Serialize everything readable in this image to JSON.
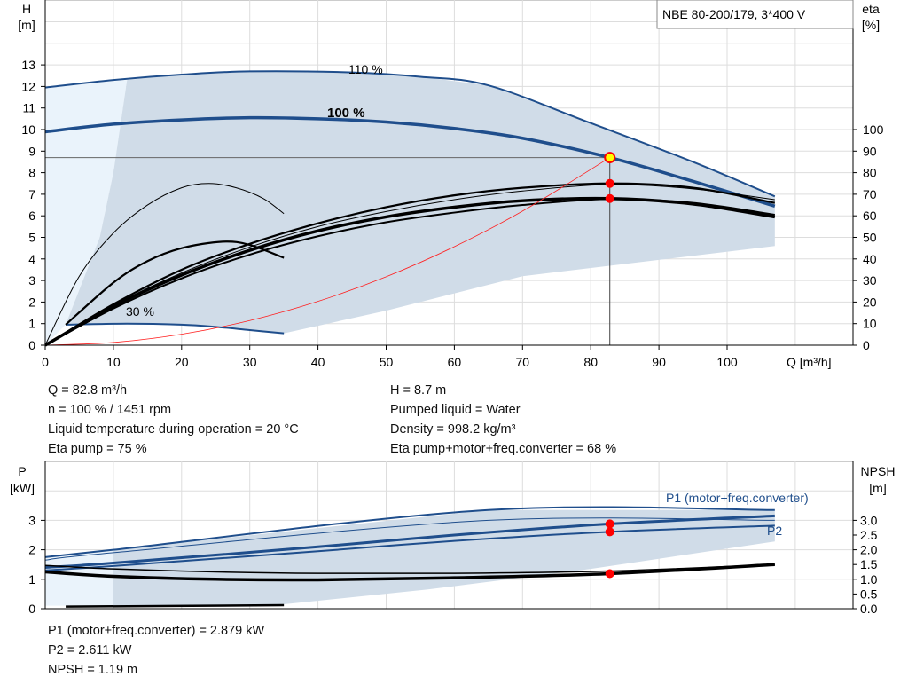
{
  "chart_data": [
    {
      "type": "line",
      "title": "NBE 80-200/179, 3*400 V",
      "xlabel": "Q [m³/h]",
      "ylabel": "H\n[m]",
      "y2label": "eta\n[%]",
      "xlim": [
        0,
        117
      ],
      "ylim": [
        0,
        16
      ],
      "y2lim": [
        0,
        160
      ],
      "xticks": [
        0,
        10,
        20,
        30,
        40,
        50,
        60,
        70,
        80,
        90,
        100
      ],
      "yticks": [
        0,
        1,
        2,
        3,
        4,
        5,
        6,
        7,
        8,
        9,
        10,
        11,
        12,
        13
      ],
      "y2ticks": [
        0,
        10,
        20,
        30,
        40,
        50,
        60,
        70,
        80,
        90,
        100
      ],
      "grid": true,
      "series": [
        {
          "name": "110 %",
          "axis": "H",
          "color": "#1f4e8c",
          "width": 2,
          "x": [
            0,
            10,
            20,
            30,
            45,
            55,
            65,
            80,
            95,
            107
          ],
          "y": [
            11.95,
            12.3,
            12.55,
            12.7,
            12.65,
            12.45,
            12.05,
            10.3,
            8.5,
            6.9
          ]
        },
        {
          "name": "100 %",
          "axis": "H",
          "color": "#1f4e8c",
          "width": 3.5,
          "x": [
            0,
            10,
            20,
            30,
            40,
            50,
            60,
            70,
            82.8,
            95,
            107
          ],
          "y": [
            9.9,
            10.25,
            10.45,
            10.55,
            10.5,
            10.35,
            10.05,
            9.6,
            8.7,
            7.6,
            6.45
          ]
        },
        {
          "name": "30 %",
          "axis": "H",
          "color": "#1f4e8c",
          "width": 2,
          "x": [
            3,
            12,
            20,
            25,
            30,
            35
          ],
          "y": [
            0.95,
            1.0,
            0.95,
            0.85,
            0.7,
            0.55
          ]
        },
        {
          "axis": "H",
          "color": "#000",
          "width": 1,
          "x": [
            0,
            5,
            10,
            15,
            20,
            24,
            28,
            32,
            35
          ],
          "y": [
            0,
            3.2,
            5.2,
            6.5,
            7.3,
            7.5,
            7.3,
            6.8,
            6.1
          ]
        },
        {
          "axis": "H",
          "color": "#000",
          "width": 2.2,
          "x": [
            3,
            10,
            15,
            20,
            26,
            30,
            35
          ],
          "y": [
            0.95,
            2.9,
            3.9,
            4.5,
            4.8,
            4.65,
            4.05
          ]
        },
        {
          "axis": "H",
          "color": "#000",
          "width": 2.2,
          "x": [
            0,
            10,
            20,
            30,
            40,
            50,
            60,
            70,
            82.8,
            95,
            107
          ],
          "y": [
            0,
            1.9,
            3.5,
            4.7,
            5.65,
            6.4,
            6.95,
            7.3,
            7.5,
            7.3,
            6.6
          ]
        },
        {
          "axis": "H",
          "color": "#000",
          "width": 1,
          "x": [
            0,
            10,
            20,
            30,
            40,
            50,
            60,
            70,
            82.8,
            95,
            107
          ],
          "y": [
            0,
            1.85,
            3.35,
            4.55,
            5.5,
            6.2,
            6.75,
            7.15,
            7.45,
            7.25,
            6.75
          ]
        },
        {
          "axis": "H",
          "color": "#000",
          "width": 3.5,
          "x": [
            0,
            10,
            20,
            30,
            40,
            50,
            60,
            70,
            82.8,
            95,
            107
          ],
          "y": [
            0,
            1.8,
            3.25,
            4.4,
            5.3,
            5.95,
            6.4,
            6.7,
            6.8,
            6.55,
            5.95
          ]
        },
        {
          "axis": "H",
          "color": "#000",
          "width": 2,
          "x": [
            0,
            10,
            20,
            30,
            40,
            50,
            60,
            70,
            82.8,
            95,
            107
          ],
          "y": [
            0,
            1.7,
            3.1,
            4.2,
            5.05,
            5.7,
            6.15,
            6.5,
            6.78,
            6.6,
            6.05
          ]
        },
        {
          "axis": "H",
          "color": "#ff2020",
          "width": 0.8,
          "x": [
            0,
            10,
            20,
            30,
            40,
            50,
            60,
            70,
            82.8
          ],
          "y": [
            0,
            0.127,
            0.508,
            1.142,
            2.03,
            3.172,
            4.568,
            6.218,
            8.7
          ]
        }
      ],
      "shaded_dark": {
        "x": [
          12,
          20,
          30,
          45,
          55,
          65,
          80,
          95,
          107,
          107,
          70,
          50,
          35,
          25,
          12,
          3,
          8,
          10
        ],
        "y": [
          12.3,
          12.55,
          12.7,
          12.65,
          12.45,
          12.05,
          10.3,
          8.5,
          6.9,
          4.6,
          3.2,
          1.6,
          0.55,
          0.85,
          1.0,
          0.95,
          5.0,
          8.0
        ]
      },
      "shaded_light": {
        "x": [
          0,
          12,
          10,
          8,
          3,
          0
        ],
        "y": [
          11.95,
          12.3,
          8.0,
          5.0,
          0.95,
          0
        ]
      },
      "operating_point": {
        "Q": 82.8,
        "H": 8.7
      },
      "markers": [
        {
          "Q": 82.8,
          "eta": 75
        },
        {
          "Q": 82.8,
          "eta": 68
        }
      ],
      "annotations": [
        "110 %",
        "100 %",
        "30 %"
      ]
    },
    {
      "type": "line",
      "ylabel": "P\n[kW]",
      "y2label": "NPSH\n[m]",
      "xlim": [
        0,
        117
      ],
      "ylim": [
        0,
        5
      ],
      "y2lim": [
        0,
        5
      ],
      "yticks": [
        0,
        1,
        2,
        3
      ],
      "y2ticks": [
        "0.0",
        "0.5",
        "1.0",
        "1.5",
        "2.0",
        "2.5",
        "3.0"
      ],
      "grid": true,
      "series": [
        {
          "axis": "P",
          "color": "#1f4e8c",
          "width": 2,
          "x": [
            0,
            10,
            65,
            107
          ],
          "y": [
            1.75,
            2.0,
            3.35,
            3.35
          ]
        },
        {
          "axis": "P",
          "color": "#1f4e8c",
          "width": 1,
          "x": [
            0,
            10,
            65,
            107
          ],
          "y": [
            1.65,
            1.9,
            3.0,
            3.0
          ]
        },
        {
          "name": "P1 (motor+freq.converter)",
          "axis": "P",
          "color": "#1f4e8c",
          "width": 3,
          "x": [
            0,
            10,
            40,
            60,
            82.8,
            107
          ],
          "y": [
            1.4,
            1.55,
            2.1,
            2.5,
            2.879,
            3.15
          ]
        },
        {
          "name": "P2",
          "axis": "P",
          "color": "#1f4e8c",
          "width": 2,
          "x": [
            0,
            10,
            40,
            60,
            82.8,
            107
          ],
          "y": [
            1.3,
            1.45,
            1.95,
            2.3,
            2.611,
            2.82
          ]
        },
        {
          "axis": "NPSH",
          "color": "#000",
          "width": 3.5,
          "x": [
            0,
            10,
            25,
            40,
            60,
            82.8,
            107
          ],
          "y": [
            1.25,
            1.1,
            1.0,
            0.98,
            1.05,
            1.19,
            1.5
          ]
        },
        {
          "axis": "NPSH",
          "color": "#000",
          "width": 1.5,
          "x": [
            0,
            10,
            25,
            40,
            60,
            82.8,
            107
          ],
          "y": [
            1.47,
            1.35,
            1.25,
            1.2,
            1.2,
            1.28,
            1.5
          ]
        },
        {
          "axis": "NPSH",
          "color": "#000",
          "width": 2.5,
          "x": [
            3,
            35
          ],
          "y": [
            0.07,
            0.12
          ]
        }
      ],
      "shaded_dark": {
        "x": [
          10,
          65,
          107,
          107,
          80,
          56,
          35,
          10
        ],
        "y": [
          2.0,
          3.35,
          3.35,
          2.28,
          1.35,
          0.65,
          0.15,
          0.1
        ]
      },
      "shaded_light": {
        "x": [
          0,
          10,
          10,
          0
        ],
        "y": [
          1.75,
          2.0,
          0.1,
          0.1
        ]
      },
      "markers": [
        {
          "Q": 82.8,
          "P": 2.879
        },
        {
          "Q": 82.8,
          "P": 2.611
        },
        {
          "Q": 82.8,
          "NPSH": 1.19
        }
      ],
      "labels": [
        "P1 (motor+freq.converter)",
        "P2"
      ]
    }
  ],
  "info_top_left": [
    "Q = 82.8 m³/h",
    "n = 100 % / 1451 rpm",
    "Liquid temperature during operation = 20 °C",
    "Eta pump = 75 %"
  ],
  "info_top_right": [
    "H = 8.7 m",
    "Pumped liquid = Water",
    "Density = 998.2 kg/m³",
    "Eta pump+motor+freq.converter = 68 %"
  ],
  "info_bottom": [
    "P1 (motor+freq.converter) = 2.879 kW",
    "P2 = 2.611 kW",
    "NPSH = 1.19 m"
  ],
  "colors": {
    "curve": "#1f4e8c",
    "dark_area": "#d0dce8",
    "light_area": "#eaf3fb",
    "marker": "#ff0000",
    "op_fill": "#ffff00"
  }
}
